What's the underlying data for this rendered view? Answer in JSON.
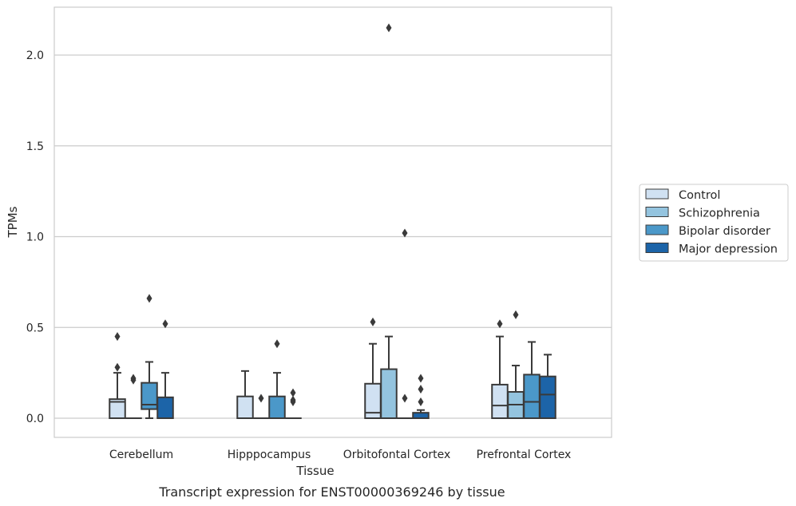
{
  "caption": "Transcript expression for ENST00000369246 by tissue",
  "chart_data": {
    "type": "box",
    "xlabel": "Tissue",
    "ylabel": "TPMs",
    "ylim": [
      -0.1,
      2.25
    ],
    "yticks": [
      0.0,
      0.5,
      1.0,
      1.5,
      2.0
    ],
    "ytick_labels": [
      "0.0",
      "0.5",
      "1.0",
      "1.5",
      "2.0"
    ],
    "grid": "horizontal",
    "legend_position": "right",
    "categories": [
      "Cerebellum",
      "Hipppocampus",
      "Orbitofontal Cortex",
      "Prefrontal Cortex"
    ],
    "series": [
      {
        "name": "Control",
        "color": "#d0e1f2",
        "boxes": [
          {
            "q1": 0.0,
            "median": 0.09,
            "q3": 0.105,
            "whisker_low": 0.0,
            "whisker_high": 0.25,
            "outliers": [
              0.45,
              0.28
            ]
          },
          {
            "q1": 0.0,
            "median": 0.0,
            "q3": 0.12,
            "whisker_low": 0.0,
            "whisker_high": 0.26,
            "outliers": []
          },
          {
            "q1": 0.0,
            "median": 0.03,
            "q3": 0.19,
            "whisker_low": 0.0,
            "whisker_high": 0.41,
            "outliers": [
              0.53
            ]
          },
          {
            "q1": 0.0,
            "median": 0.07,
            "q3": 0.185,
            "whisker_low": 0.0,
            "whisker_high": 0.45,
            "outliers": [
              0.52
            ]
          }
        ]
      },
      {
        "name": "Schizophrenia",
        "color": "#94c4df",
        "boxes": [
          {
            "q1": 0.0,
            "median": 0.0,
            "q3": 0.0,
            "whisker_low": 0.0,
            "whisker_high": 0.0,
            "outliers": [
              0.21,
              0.22
            ]
          },
          {
            "q1": 0.0,
            "median": 0.0,
            "q3": 0.0,
            "whisker_low": 0.0,
            "whisker_high": 0.0,
            "outliers": [
              0.11
            ]
          },
          {
            "q1": 0.0,
            "median": 0.0,
            "q3": 0.27,
            "whisker_low": 0.0,
            "whisker_high": 0.45,
            "outliers": [
              2.15
            ]
          },
          {
            "q1": 0.0,
            "median": 0.075,
            "q3": 0.145,
            "whisker_low": 0.0,
            "whisker_high": 0.29,
            "outliers": [
              0.57
            ]
          }
        ]
      },
      {
        "name": "Bipolar disorder",
        "color": "#4b98c9",
        "boxes": [
          {
            "q1": 0.05,
            "median": 0.075,
            "q3": 0.195,
            "whisker_low": 0.0,
            "whisker_high": 0.31,
            "outliers": [
              0.66
            ]
          },
          {
            "q1": 0.0,
            "median": 0.0,
            "q3": 0.12,
            "whisker_low": 0.0,
            "whisker_high": 0.25,
            "outliers": [
              0.41
            ]
          },
          {
            "q1": 0.0,
            "median": 0.0,
            "q3": 0.0,
            "whisker_low": 0.0,
            "whisker_high": 0.0,
            "outliers": [
              1.02,
              0.11
            ]
          },
          {
            "q1": 0.0,
            "median": 0.09,
            "q3": 0.24,
            "whisker_low": 0.0,
            "whisker_high": 0.42,
            "outliers": []
          }
        ]
      },
      {
        "name": "Major depression",
        "color": "#1c64a8",
        "boxes": [
          {
            "q1": 0.0,
            "median": 0.0,
            "q3": 0.115,
            "whisker_low": 0.0,
            "whisker_high": 0.25,
            "outliers": [
              0.52
            ]
          },
          {
            "q1": 0.0,
            "median": 0.0,
            "q3": 0.0,
            "whisker_low": 0.0,
            "whisker_high": 0.0,
            "outliers": [
              0.14,
              0.1,
              0.09
            ]
          },
          {
            "q1": 0.0,
            "median": 0.0,
            "q3": 0.03,
            "whisker_low": 0.0,
            "whisker_high": 0.045,
            "outliers": [
              0.22,
              0.16,
              0.09
            ]
          },
          {
            "q1": 0.0,
            "median": 0.13,
            "q3": 0.23,
            "whisker_low": 0.0,
            "whisker_high": 0.35,
            "outliers": []
          }
        ]
      }
    ]
  }
}
